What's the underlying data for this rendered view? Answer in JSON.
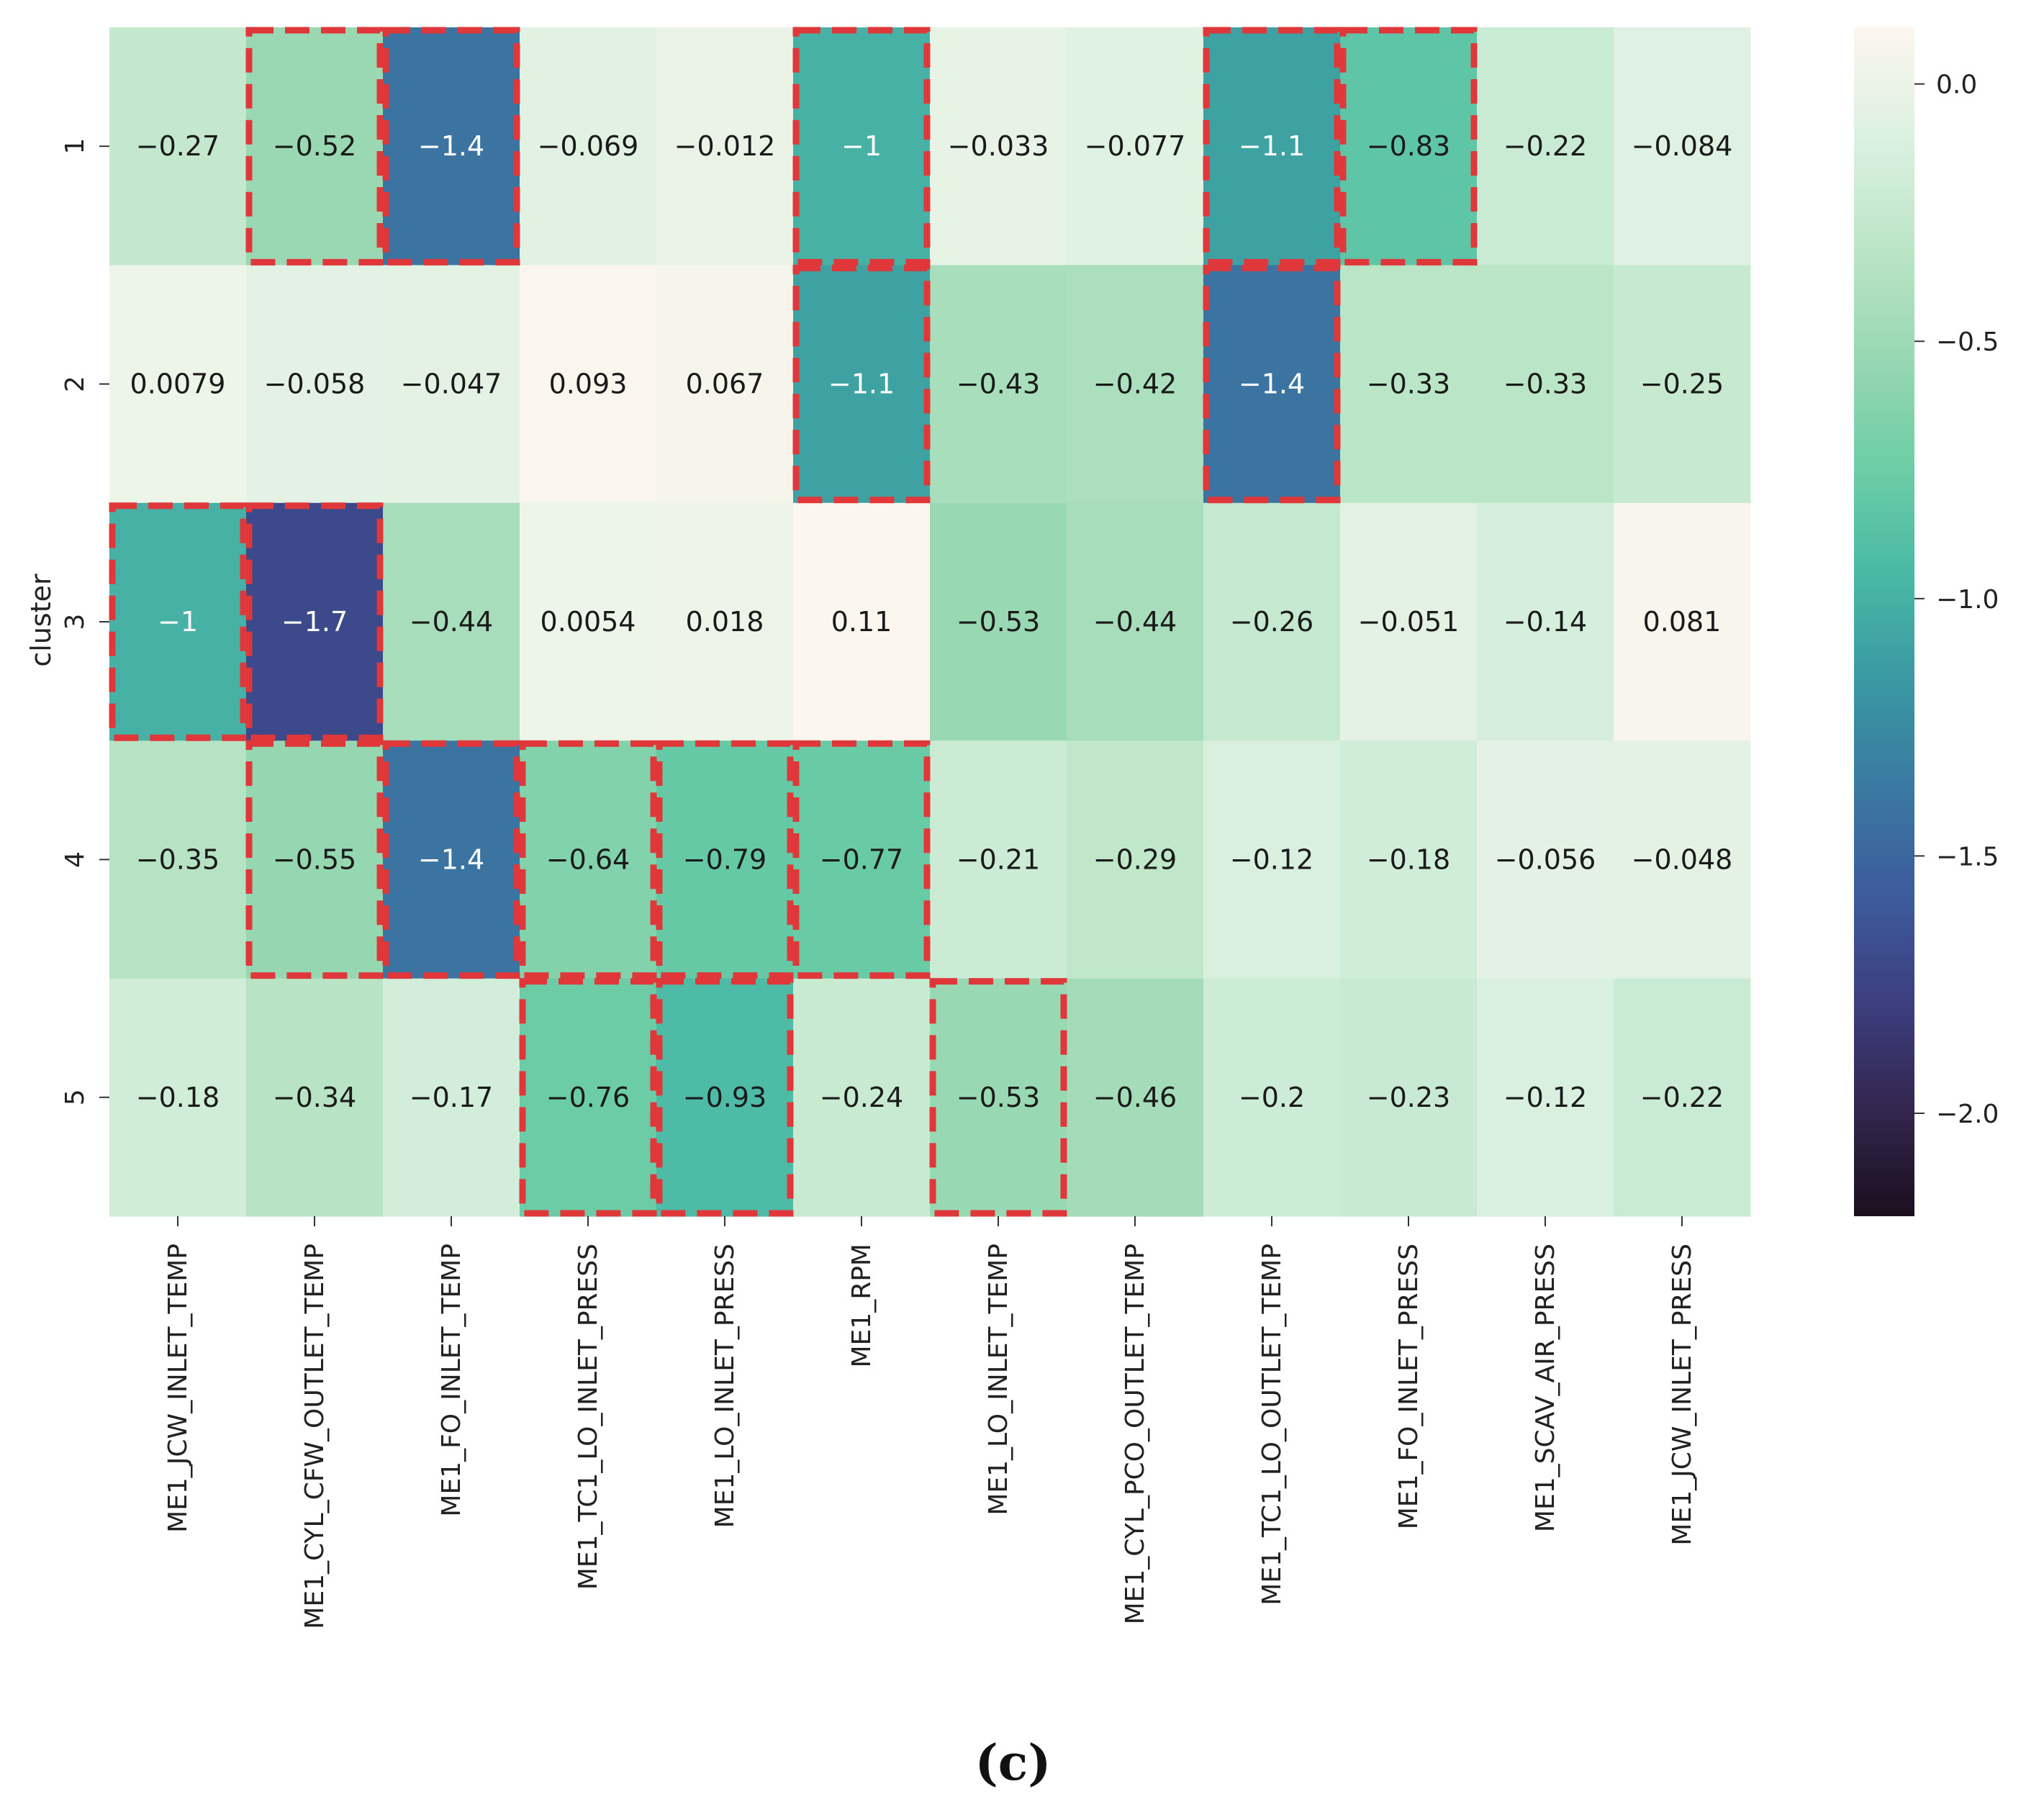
{
  "caption": "(c)",
  "chart_data": {
    "type": "heatmap",
    "title": "",
    "ylabel": "cluster",
    "xlabel": "",
    "rows": [
      "1",
      "2",
      "3",
      "4",
      "5"
    ],
    "columns": [
      "ME1_JCW_INLET_TEMP",
      "ME1_CYL_CFW_OUTLET_TEMP",
      "ME1_FO_INLET_TEMP",
      "ME1_TC1_LO_INLET_PRESS",
      "ME1_LO_INLET_PRESS",
      "ME1_RPM",
      "ME1_LO_INLET_TEMP",
      "ME1_CYL_PCO_OUTLET_TEMP",
      "ME1_TC1_LO_OUTLET_TEMP",
      "ME1_FO_INLET_PRESS",
      "ME1_SCAV_AIR_PRESS",
      "ME1_JCW_INLET_PRESS"
    ],
    "values": [
      [
        -0.27,
        -0.52,
        -1.4,
        -0.069,
        -0.012,
        -1,
        -0.033,
        -0.077,
        -1.1,
        -0.83,
        -0.22,
        -0.084
      ],
      [
        0.0079,
        -0.058,
        -0.047,
        0.093,
        0.067,
        -1.1,
        -0.43,
        -0.42,
        -1.4,
        -0.33,
        -0.33,
        -0.25
      ],
      [
        -1,
        -1.7,
        -0.44,
        0.0054,
        0.018,
        0.11,
        -0.53,
        -0.44,
        -0.26,
        -0.051,
        -0.14,
        0.081
      ],
      [
        -0.35,
        -0.55,
        -1.4,
        -0.64,
        -0.79,
        -0.77,
        -0.21,
        -0.29,
        -0.12,
        -0.18,
        -0.056,
        -0.048
      ],
      [
        -0.18,
        -0.34,
        -0.17,
        -0.76,
        -0.93,
        -0.24,
        -0.53,
        -0.46,
        -0.2,
        -0.23,
        -0.12,
        -0.22
      ]
    ],
    "value_labels": [
      [
        "−0.27",
        "−0.52",
        "−1.4",
        "−0.069",
        "−0.012",
        "−1",
        "−0.033",
        "−0.077",
        "−1.1",
        "−0.83",
        "−0.22",
        "−0.084"
      ],
      [
        "0.0079",
        "−0.058",
        "−0.047",
        "0.093",
        "0.067",
        "−1.1",
        "−0.43",
        "−0.42",
        "−1.4",
        "−0.33",
        "−0.33",
        "−0.25"
      ],
      [
        "−1",
        "−1.7",
        "−0.44",
        "0.0054",
        "0.018",
        "0.11",
        "−0.53",
        "−0.44",
        "−0.26",
        "−0.051",
        "−0.14",
        "0.081"
      ],
      [
        "−0.35",
        "−0.55",
        "−1.4",
        "−0.64",
        "−0.79",
        "−0.77",
        "−0.21",
        "−0.29",
        "−0.12",
        "−0.18",
        "−0.056",
        "−0.048"
      ],
      [
        "−0.18",
        "−0.34",
        "−0.17",
        "−0.76",
        "−0.93",
        "−0.24",
        "−0.53",
        "−0.46",
        "−0.2",
        "−0.23",
        "−0.12",
        "−0.22"
      ]
    ],
    "highlighted": [
      [
        false,
        true,
        true,
        false,
        false,
        true,
        false,
        false,
        true,
        true,
        false,
        false
      ],
      [
        false,
        false,
        false,
        false,
        false,
        true,
        false,
        false,
        true,
        false,
        false,
        false
      ],
      [
        true,
        true,
        false,
        false,
        false,
        false,
        false,
        false,
        false,
        false,
        false,
        false
      ],
      [
        false,
        true,
        true,
        true,
        true,
        true,
        false,
        false,
        false,
        false,
        false,
        false
      ],
      [
        false,
        false,
        false,
        true,
        true,
        false,
        true,
        false,
        false,
        false,
        false,
        false
      ]
    ],
    "colorbar": {
      "range": [
        -2.2,
        0.11
      ],
      "ticks": [
        0.0,
        -0.5,
        -1.0,
        -1.5,
        -2.0
      ],
      "tick_labels": [
        "0.0",
        "−0.5",
        "−1.0",
        "−1.5",
        "−2.0"
      ],
      "colormap": [
        "#fdf6ee",
        "#dcf1e1",
        "#bde6c8",
        "#9ad8b3",
        "#70cfa6",
        "#4bbaa5",
        "#3a9aa3",
        "#3a7aa2",
        "#3d5c9c",
        "#3c3f80",
        "#34264f",
        "#1b0f1e"
      ]
    },
    "highlight_color": "#e0373a"
  }
}
